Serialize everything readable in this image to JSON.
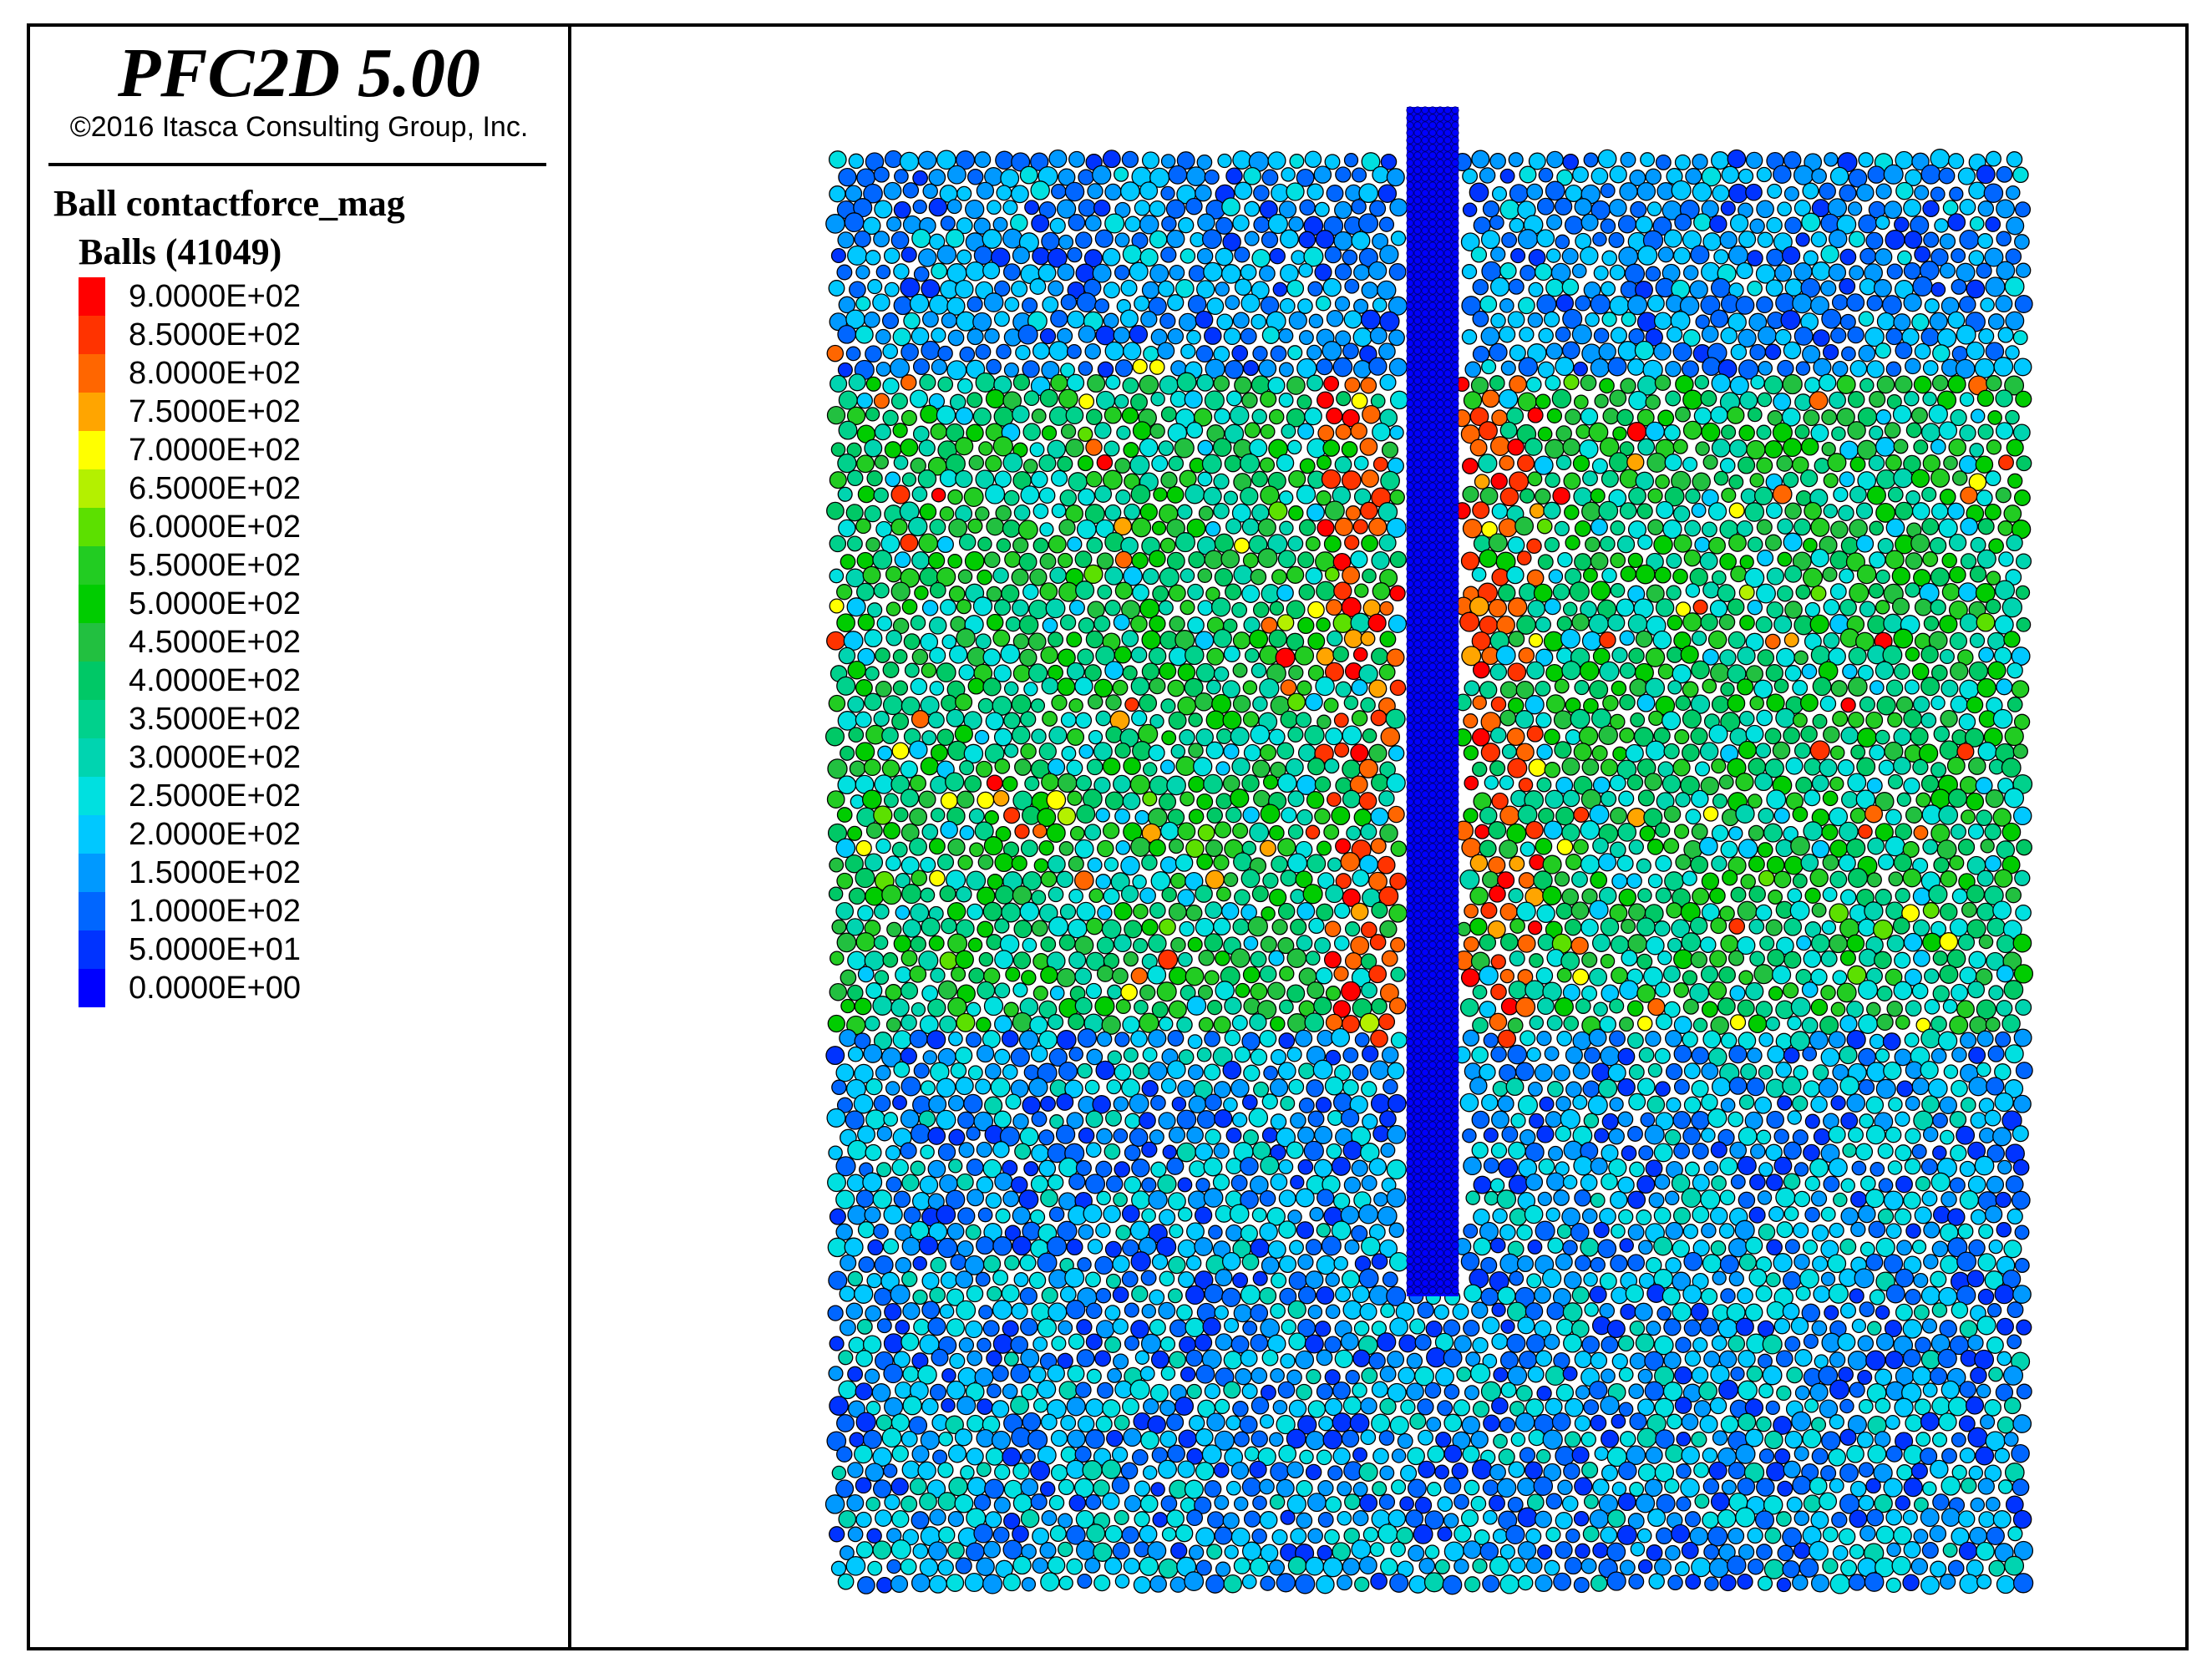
{
  "header": {
    "title": "PFC2D 5.00",
    "copyright": "©2016 Itasca Consulting Group, Inc."
  },
  "legend": {
    "attribute_label": "Ball contactforce_mag",
    "group_label": "Balls (41049)",
    "entries": [
      {
        "label": "9.0000E+02",
        "color": "#ff0000"
      },
      {
        "label": "8.5000E+02",
        "color": "#ff3300"
      },
      {
        "label": "8.0000E+02",
        "color": "#ff6600"
      },
      {
        "label": "7.5000E+02",
        "color": "#ffa500"
      },
      {
        "label": "7.0000E+02",
        "color": "#ffff00"
      },
      {
        "label": "6.5000E+02",
        "color": "#b4f000"
      },
      {
        "label": "6.0000E+02",
        "color": "#5ce000"
      },
      {
        "label": "5.5000E+02",
        "color": "#22cc22"
      },
      {
        "label": "5.0000E+02",
        "color": "#00cc00"
      },
      {
        "label": "4.5000E+02",
        "color": "#22c040"
      },
      {
        "label": "4.0000E+02",
        "color": "#00c866"
      },
      {
        "label": "3.5000E+02",
        "color": "#00d18c"
      },
      {
        "label": "3.0000E+02",
        "color": "#00d4b0"
      },
      {
        "label": "2.5000E+02",
        "color": "#00e0e0"
      },
      {
        "label": "2.0000E+02",
        "color": "#00c8ff"
      },
      {
        "label": "1.5000E+02",
        "color": "#0099ff"
      },
      {
        "label": "1.0000E+02",
        "color": "#0066ff"
      },
      {
        "label": "5.0000E+01",
        "color": "#0033ff"
      },
      {
        "label": "0.0000E+00",
        "color": "#0000ff"
      }
    ]
  },
  "chart_data": {
    "type": "heatmap",
    "quantity": "Ball contactforce_mag",
    "ball_count": 41049,
    "value_range": [
      0,
      900
    ],
    "contour_interval": 50,
    "background": "#ffffff",
    "ball_outline_color": "#000000",
    "regions": [
      {
        "name": "sample-top-band",
        "dominant_force": [
          50,
          200
        ]
      },
      {
        "name": "sample-upper-middle",
        "dominant_force": [
          250,
          600
        ]
      },
      {
        "name": "pile-side-high-force-zone",
        "dominant_force": [
          750,
          900
        ]
      },
      {
        "name": "sample-lower-band",
        "dominant_force": [
          50,
          300
        ]
      },
      {
        "name": "penetrating-pile",
        "dominant_force": [
          0,
          0
        ]
      }
    ]
  }
}
